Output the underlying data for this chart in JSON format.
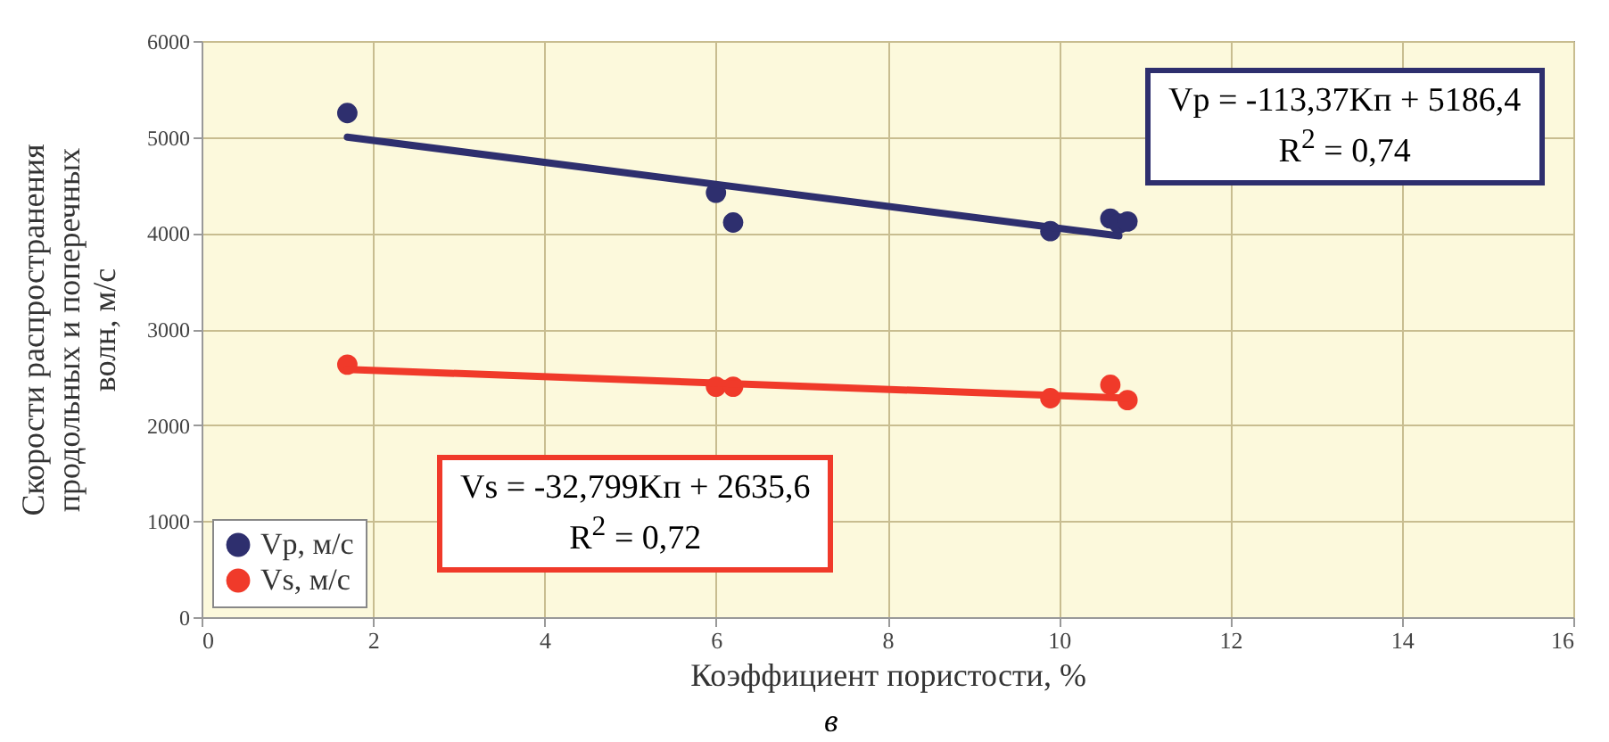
{
  "chart_data": {
    "type": "scatter",
    "xlabel": "Коэффициент пористости, %",
    "ylabel": "Скорости распространения\nпродольных и поперечных\nволн, м/с",
    "xlim": [
      0,
      16
    ],
    "xticks": [
      0,
      2,
      4,
      6,
      8,
      10,
      12,
      14,
      16
    ],
    "ylim": [
      0,
      6000
    ],
    "yticks": [
      0,
      1000,
      2000,
      3000,
      4000,
      5000,
      6000
    ],
    "grid": true,
    "legend": "bottom left",
    "series": [
      {
        "name": "Vp, м/с",
        "color": "#2e2f6e",
        "marker": "circle",
        "x": [
          1.7,
          6.0,
          6.2,
          9.9,
          10.6,
          10.7,
          10.8
        ],
        "values": [
          5250,
          4420,
          4110,
          4020,
          4150,
          4100,
          4120
        ]
      },
      {
        "name": "Vs, м/с",
        "color": "#f03a2a",
        "marker": "circle",
        "x": [
          1.7,
          6.0,
          6.2,
          9.9,
          10.6,
          10.8
        ],
        "values": [
          2630,
          2400,
          2400,
          2280,
          2420,
          2260
        ]
      },
      {
        "type": "line",
        "color": "#2e2f6e",
        "x": [
          1.7,
          10.7
        ],
        "values": [
          5000,
          3970
        ]
      },
      {
        "type": "line",
        "color": "#f03a2a",
        "x": [
          1.7,
          10.8
        ],
        "values": [
          2580,
          2280
        ]
      }
    ],
    "annotations": [
      "Vp = -113,37Kп + 5186,4\nR$^{2}$ = 0,74",
      "Vs = -32,799Kп + 2635,6\nR$^{2}$ = 0,72",
      "в"
    ]
  }
}
